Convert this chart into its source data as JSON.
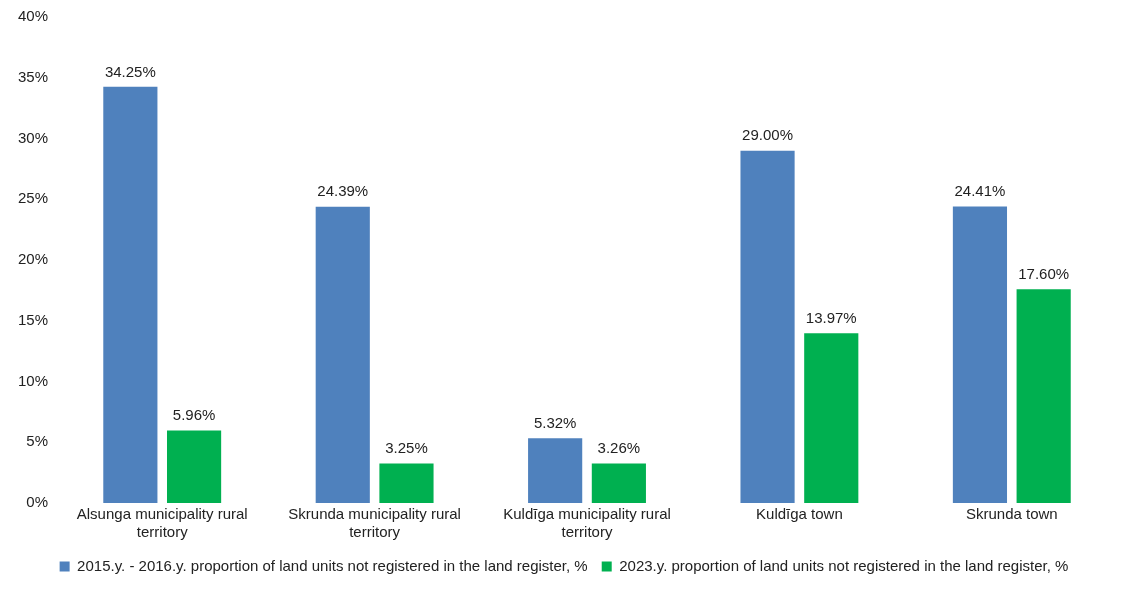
{
  "chart_data": {
    "type": "bar",
    "categories": [
      "Alsunga municipality rural territory",
      "Skrunda municipality rural territory",
      "Kuldīga municipality rural territory",
      "Kuldīga town",
      "Skrunda town"
    ],
    "series": [
      {
        "name": "2015.y. - 2016.y. proportion of land units not registered in the land register, %",
        "color": "#4f81bd",
        "values": [
          34.25,
          24.39,
          5.32,
          29.0,
          24.41
        ],
        "value_labels": [
          "34.25%",
          "24.39%",
          "5.32%",
          "29.00%",
          "24.41%"
        ]
      },
      {
        "name": "2023.y. proportion of land units not registered in the land register, %",
        "color": "#00b050",
        "values": [
          5.96,
          3.25,
          3.26,
          13.97,
          17.6
        ],
        "value_labels": [
          "5.96%",
          "3.25%",
          "3.26%",
          "13.97%",
          "17.60%"
        ]
      }
    ],
    "ylim": [
      0,
      40
    ],
    "yticks": [
      {
        "value": 0,
        "label": "0%"
      },
      {
        "value": 5,
        "label": "5%"
      },
      {
        "value": 10,
        "label": "10%"
      },
      {
        "value": 15,
        "label": "15%"
      },
      {
        "value": 20,
        "label": "20%"
      },
      {
        "value": 25,
        "label": "25%"
      },
      {
        "value": 30,
        "label": "30%"
      },
      {
        "value": 35,
        "label": "35%"
      },
      {
        "value": 40,
        "label": "40%"
      }
    ],
    "grid": false,
    "legend": "bottom"
  }
}
